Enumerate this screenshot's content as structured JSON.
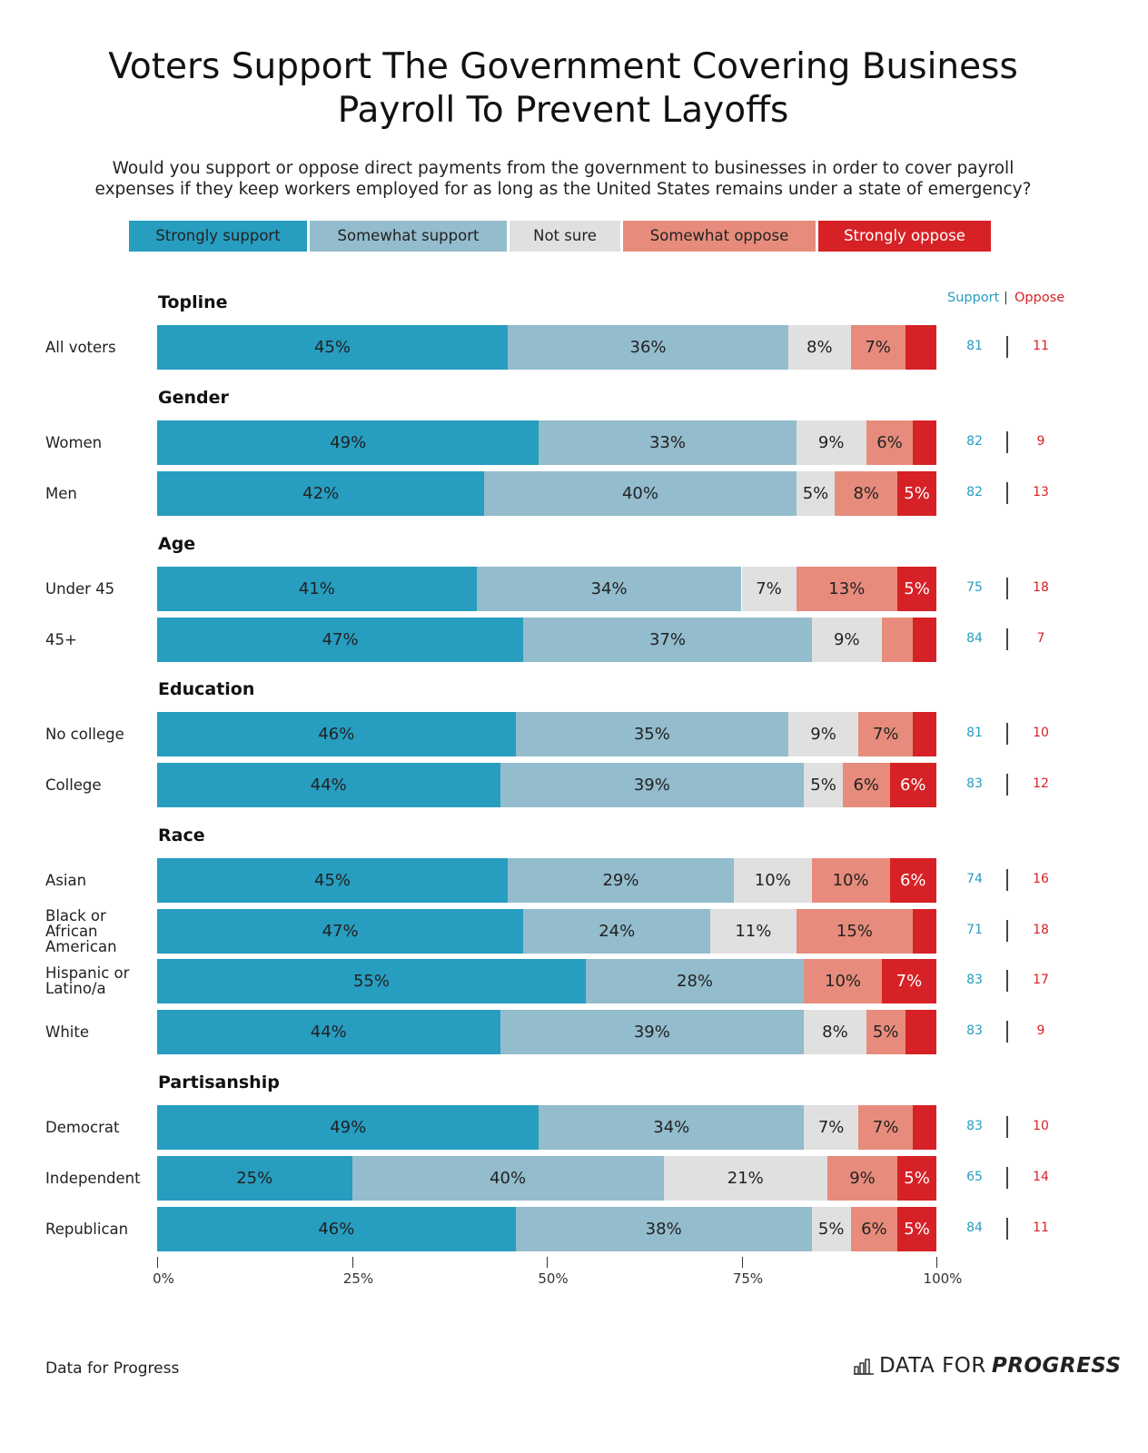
{
  "title_line1": "Voters Support The Government Covering Business",
  "title_line2": "Payroll To Prevent Layoffs",
  "subtitle_line1": "Would you support or oppose direct payments from the government to businesses in order to cover payroll",
  "subtitle_line2": "expenses if they keep workers employed for as long as the United States remains under a state of emergency?",
  "source": "Data for Progress",
  "logo": {
    "text_light": "DATA FOR",
    "text_bold": "PROGRESS",
    "icon": "bar-chart-icon"
  },
  "chart_data": {
    "type": "bar",
    "orientation": "horizontal-stacked",
    "xlim": [
      0,
      100
    ],
    "xticks": [
      "0%",
      "25%",
      "50%",
      "75%",
      "100%"
    ],
    "legend": {
      "placement": "top"
    },
    "series": [
      {
        "name": "Strongly support",
        "color": "#279dc0",
        "text_color": "#222222"
      },
      {
        "name": "Somewhat support",
        "color": "#93bccd",
        "text_color": "#222222"
      },
      {
        "name": "Not sure",
        "color": "#e0e0e0",
        "text_color": "#222222"
      },
      {
        "name": "Somewhat oppose",
        "color": "#e78c7c",
        "text_color": "#222222"
      },
      {
        "name": "Strongly oppose",
        "color": "#d62226",
        "text_color": "#ffffff"
      }
    ],
    "net_headers": {
      "support": "Support",
      "oppose": "Oppose",
      "support_color": "#279dc0",
      "oppose_color": "#d62226"
    },
    "groups": [
      {
        "name": "Topline",
        "rows": [
          {
            "label": "All voters",
            "values": [
              45,
              36,
              8,
              7,
              4
            ],
            "labels": [
              "45%",
              "36%",
              "8%",
              "7%",
              ""
            ],
            "support": "81",
            "oppose": "11"
          }
        ]
      },
      {
        "name": "Gender",
        "rows": [
          {
            "label": "Women",
            "values": [
              49,
              33,
              9,
              6,
              3
            ],
            "labels": [
              "49%",
              "33%",
              "9%",
              "6%",
              ""
            ],
            "support": "82",
            "oppose": "9"
          },
          {
            "label": "Men",
            "values": [
              42,
              40,
              5,
              8,
              5
            ],
            "labels": [
              "42%",
              "40%",
              "5%",
              "8%",
              "5%"
            ],
            "support": "82",
            "oppose": "13"
          }
        ]
      },
      {
        "name": "Age",
        "rows": [
          {
            "label": "Under 45",
            "values": [
              41,
              34,
              7,
              13,
              5
            ],
            "labels": [
              "41%",
              "34%",
              "7%",
              "13%",
              "5%"
            ],
            "support": "75",
            "oppose": "18"
          },
          {
            "label": "45+",
            "values": [
              47,
              37,
              9,
              4,
              3
            ],
            "labels": [
              "47%",
              "37%",
              "9%",
              "",
              ""
            ],
            "support": "84",
            "oppose": "7"
          }
        ]
      },
      {
        "name": "Education",
        "rows": [
          {
            "label": "No college",
            "values": [
              46,
              35,
              9,
              7,
              3
            ],
            "labels": [
              "46%",
              "35%",
              "9%",
              "7%",
              ""
            ],
            "support": "81",
            "oppose": "10"
          },
          {
            "label": "College",
            "values": [
              44,
              39,
              5,
              6,
              6
            ],
            "labels": [
              "44%",
              "39%",
              "5%",
              "6%",
              "6%"
            ],
            "support": "83",
            "oppose": "12"
          }
        ]
      },
      {
        "name": "Race",
        "rows": [
          {
            "label": "Asian",
            "values": [
              45,
              29,
              10,
              10,
              6
            ],
            "labels": [
              "45%",
              "29%",
              "10%",
              "10%",
              "6%"
            ],
            "support": "74",
            "oppose": "16"
          },
          {
            "label": "Black or African American",
            "values": [
              47,
              24,
              11,
              15,
              3
            ],
            "labels": [
              "47%",
              "24%",
              "11%",
              "15%",
              ""
            ],
            "support": "71",
            "oppose": "18"
          },
          {
            "label": "Hispanic or Latino/a",
            "values": [
              55,
              28,
              0,
              10,
              7
            ],
            "labels": [
              "55%",
              "28%",
              "",
              "10%",
              "7%"
            ],
            "support": "83",
            "oppose": "17"
          },
          {
            "label": "White",
            "values": [
              44,
              39,
              8,
              5,
              4
            ],
            "labels": [
              "44%",
              "39%",
              "8%",
              "5%",
              ""
            ],
            "support": "83",
            "oppose": "9"
          }
        ]
      },
      {
        "name": "Partisanship",
        "rows": [
          {
            "label": "Democrat",
            "values": [
              49,
              34,
              7,
              7,
              3
            ],
            "labels": [
              "49%",
              "34%",
              "7%",
              "7%",
              ""
            ],
            "support": "83",
            "oppose": "10"
          },
          {
            "label": "Independent",
            "values": [
              25,
              40,
              21,
              9,
              5
            ],
            "labels": [
              "25%",
              "40%",
              "21%",
              "9%",
              "5%"
            ],
            "support": "65",
            "oppose": "14"
          },
          {
            "label": "Republican",
            "values": [
              46,
              38,
              5,
              6,
              5
            ],
            "labels": [
              "46%",
              "38%",
              "5%",
              "6%",
              "5%"
            ],
            "support": "84",
            "oppose": "11"
          }
        ]
      }
    ]
  }
}
